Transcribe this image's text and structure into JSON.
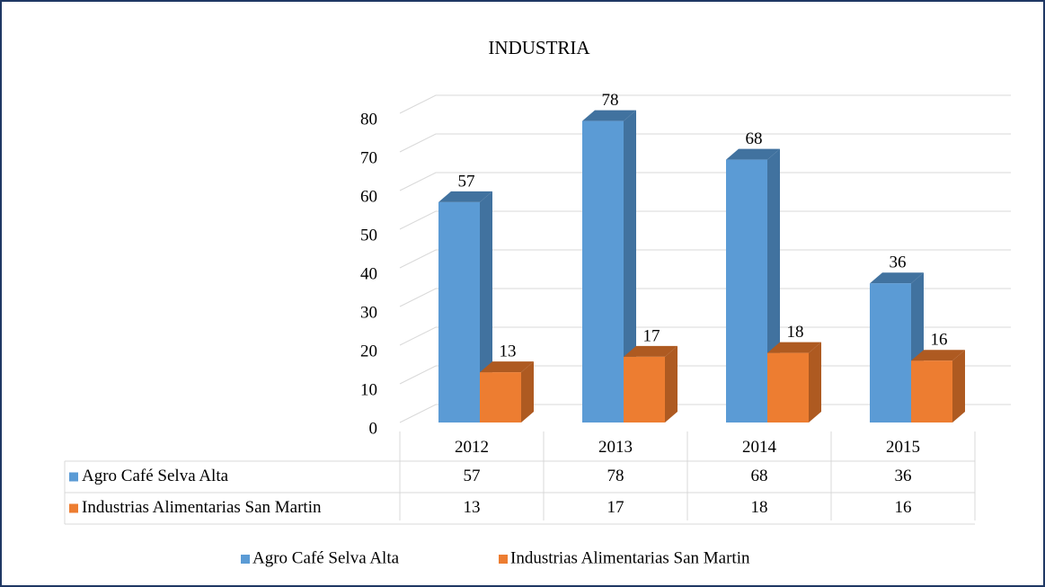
{
  "chart_data": {
    "type": "bar3d",
    "title": "INDUSTRIA",
    "categories": [
      "2012",
      "2013",
      "2014",
      "2015"
    ],
    "series": [
      {
        "name": "Agro Café Selva Alta",
        "color": "#5b9bd5",
        "side": "#41729f",
        "values": [
          57,
          78,
          68,
          36
        ]
      },
      {
        "name": "Industrias Alimentarias San Martin",
        "color": "#ed7d31",
        "side": "#ae5a21",
        "values": [
          13,
          17,
          18,
          16
        ]
      }
    ],
    "ylim": [
      0,
      80
    ],
    "yticks": [
      0,
      10,
      20,
      30,
      40,
      50,
      60,
      70,
      80
    ],
    "grid": true,
    "data_table": true,
    "legend": "bottom"
  }
}
